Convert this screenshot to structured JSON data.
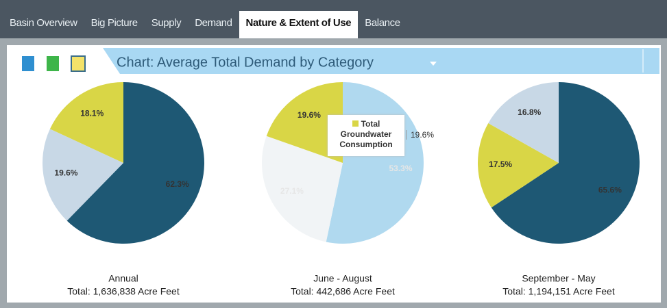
{
  "tabs": [
    "Basin Overview",
    "Big Picture",
    "Supply",
    "Demand",
    "Nature & Extent of Use",
    "Balance"
  ],
  "active_tab": 4,
  "chart_header": {
    "title": "Chart: Average Total Demand by Category"
  },
  "chart_data": [
    {
      "type": "pie",
      "title": "Annual",
      "subtitle": "Total: 1,636,838 Acre Feet",
      "values": [
        62.3,
        19.6,
        18.1
      ],
      "value_labels": [
        "62.3%",
        "19.6%",
        "18.1%"
      ],
      "colors": [
        "#1e5874",
        "#c8d8e6",
        "#d9d646"
      ]
    },
    {
      "type": "pie",
      "title": "June - August",
      "subtitle": "Total: 442,686 Acre Feet",
      "values": [
        53.3,
        27.1,
        19.6
      ],
      "value_labels": [
        "53.3%",
        "27.1%",
        "19.6%"
      ],
      "colors": [
        "#b0d9ef",
        "#f1f4f6",
        "#d9d646"
      ],
      "highlight": 2
    },
    {
      "type": "pie",
      "title": "September - May",
      "subtitle": "Total: 1,194,151 Acre Feet",
      "values": [
        65.6,
        17.5,
        16.8
      ],
      "value_labels": [
        "65.6%",
        "17.5%",
        "16.8%"
      ],
      "colors": [
        "#1e5874",
        "#d9d646",
        "#c8d8e6"
      ]
    }
  ],
  "tooltip": {
    "label": "Total Groundwater Consumption",
    "value_label": "19.6%"
  }
}
